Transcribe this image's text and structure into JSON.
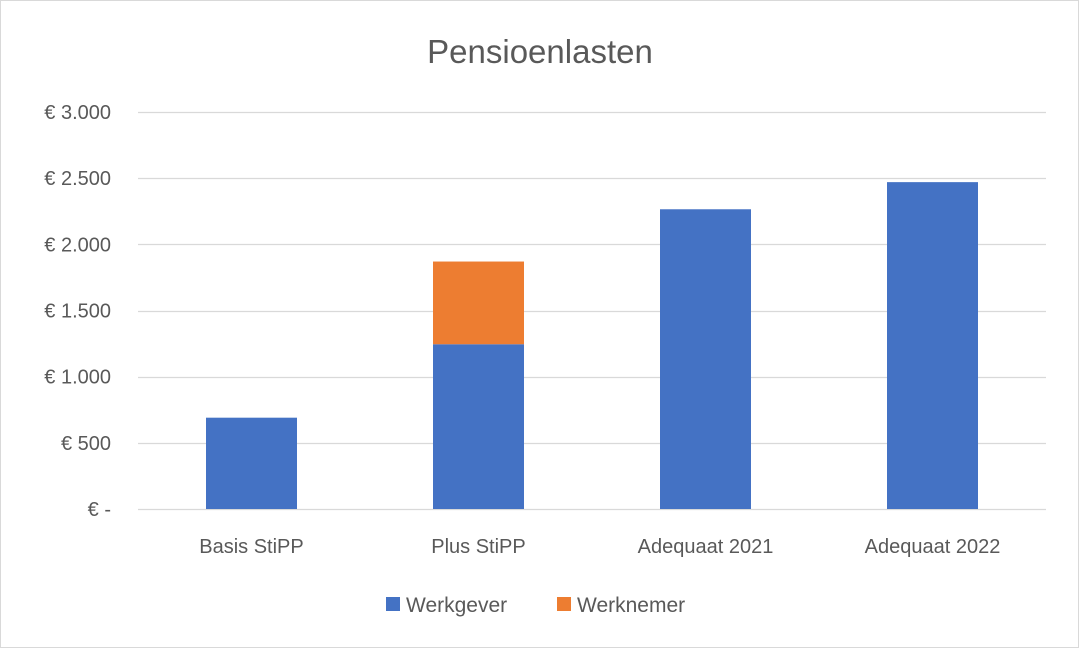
{
  "chart_data": {
    "type": "bar",
    "stacked": true,
    "title": "Pensioenlasten",
    "xlabel": "",
    "ylabel": "",
    "categories": [
      "Basis StiPP",
      "Plus StiPP",
      "Adequaat 2021",
      "Adequaat 2022"
    ],
    "series": [
      {
        "name": "Werkgever",
        "color": "#4472c4",
        "values": [
          690,
          1245,
          2265,
          2470
        ]
      },
      {
        "name": "Werknemer",
        "color": "#ed7d31",
        "values": [
          0,
          625,
          0,
          0
        ]
      }
    ],
    "ylim": [
      0,
      3000
    ],
    "yticks": [
      0,
      500,
      1000,
      1500,
      2000,
      2500,
      3000
    ],
    "ytick_labels": [
      "€ -",
      "€ 500",
      "€ 1.000",
      "€ 1.500",
      "€ 2.000",
      "€ 2.500",
      "€ 3.000"
    ],
    "grid": true,
    "gridline_color": "#d9d9d9",
    "legend_position": "bottom"
  }
}
